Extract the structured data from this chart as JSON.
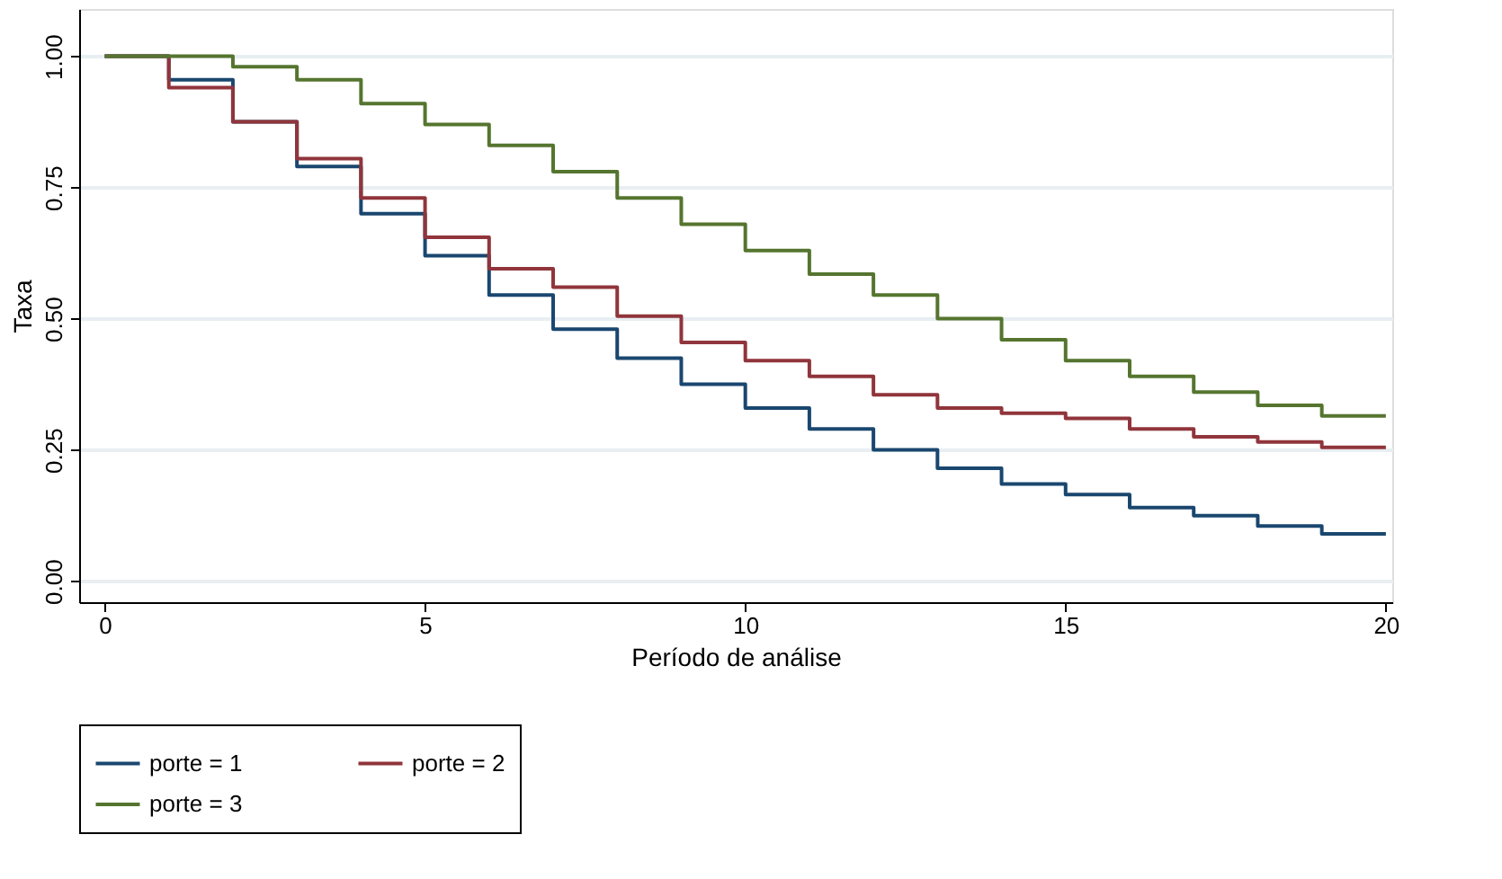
{
  "chart_data": {
    "type": "step",
    "xlabel": "Período de análise",
    "ylabel": "Taxa",
    "x": [
      0,
      1,
      2,
      3,
      4,
      5,
      6,
      7,
      8,
      9,
      10,
      11,
      12,
      13,
      14,
      15,
      16,
      17,
      18,
      19,
      20
    ],
    "series": [
      {
        "name": "porte = 1",
        "color": "#1a476f",
        "values": [
          1.0,
          0.955,
          0.875,
          0.79,
          0.7,
          0.62,
          0.545,
          0.48,
          0.425,
          0.375,
          0.33,
          0.29,
          0.25,
          0.215,
          0.185,
          0.165,
          0.14,
          0.125,
          0.105,
          0.09,
          0.09
        ]
      },
      {
        "name": "porte = 2",
        "color": "#90353b",
        "values": [
          1.0,
          0.94,
          0.875,
          0.805,
          0.73,
          0.655,
          0.595,
          0.56,
          0.505,
          0.455,
          0.42,
          0.39,
          0.355,
          0.33,
          0.32,
          0.31,
          0.29,
          0.275,
          0.265,
          0.255,
          0.255
        ]
      },
      {
        "name": "porte = 3",
        "color": "#55752f",
        "values": [
          1.0,
          1.0,
          0.98,
          0.955,
          0.91,
          0.87,
          0.83,
          0.78,
          0.73,
          0.68,
          0.63,
          0.585,
          0.545,
          0.5,
          0.46,
          0.42,
          0.39,
          0.36,
          0.335,
          0.315,
          0.315
        ]
      }
    ],
    "xlim": [
      -0.4,
      20.1
    ],
    "ylim": [
      -0.04,
      1.09
    ],
    "xticks": [
      0,
      5,
      10,
      15,
      20
    ],
    "yticks": [
      {
        "value": 0,
        "label": "0.00"
      },
      {
        "value": 0.25,
        "label": "0.25"
      },
      {
        "value": 0.5,
        "label": "0.50"
      },
      {
        "value": 0.75,
        "label": "0.75"
      },
      {
        "value": 1,
        "label": "1.00"
      }
    ],
    "grid": "y",
    "legend": "bottom",
    "line_style": "solid",
    "marker": "none"
  }
}
